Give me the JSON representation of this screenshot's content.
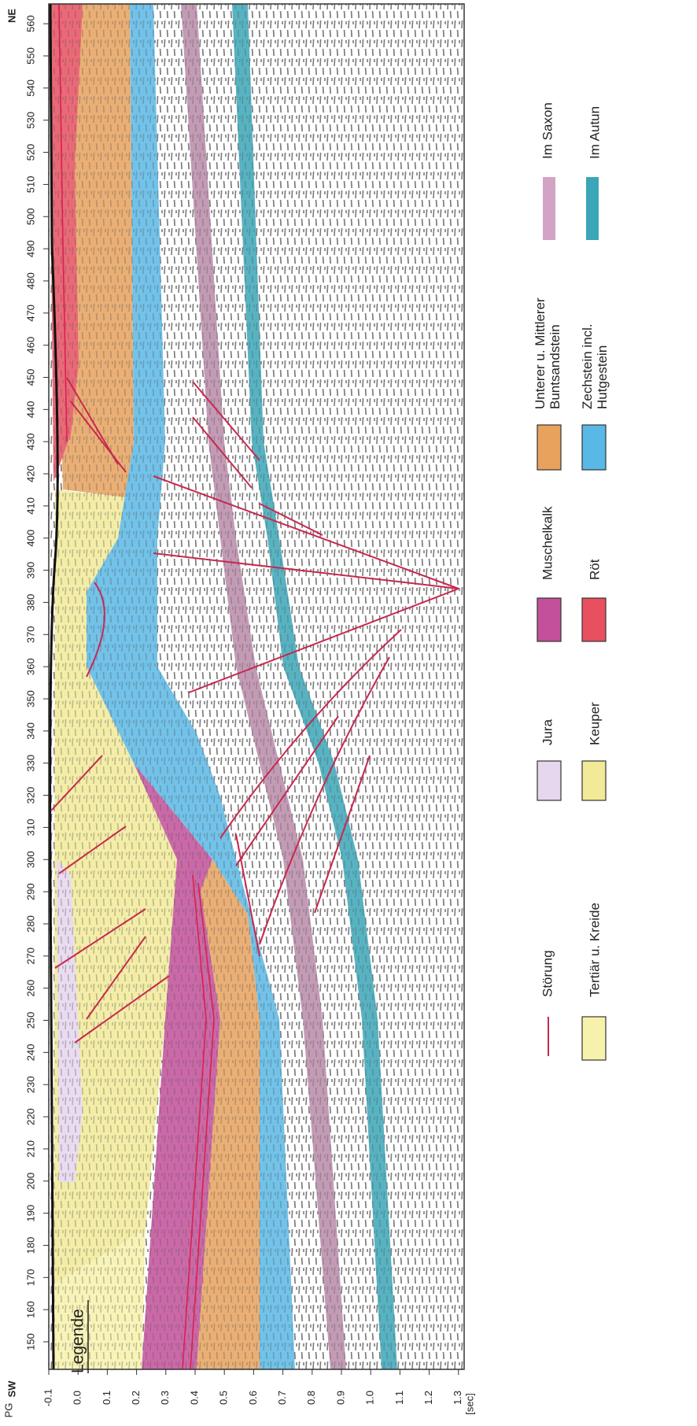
{
  "section": {
    "sw_label": "SW",
    "ne_label": "NE",
    "cdp_labels": [
      "150",
      "160",
      "170",
      "180",
      "190",
      "200",
      "210",
      "220",
      "230",
      "240",
      "250",
      "260",
      "270",
      "280",
      "290",
      "300",
      "310",
      "320",
      "330",
      "340",
      "350",
      "360",
      "370",
      "380",
      "390",
      "400",
      "410",
      "420",
      "430",
      "440",
      "450",
      "460",
      "470",
      "480",
      "490",
      "500",
      "510",
      "520",
      "530",
      "540",
      "550",
      "560"
    ],
    "time_axis_label": "PG",
    "time_labels": [
      "-0.1",
      "0.0",
      "0.1",
      "0.2",
      "0.3",
      "0.4",
      "0.5",
      "0.6",
      "0.7",
      "0.8",
      "0.9",
      "1.0",
      "1.1",
      "1.2",
      "1.3"
    ],
    "time_unit": "[sec]"
  },
  "legend": {
    "title": "Legende",
    "items": [
      {
        "lines": [
          "Störung"
        ]
      },
      {
        "lines": [
          "Tertiär u. Kreide"
        ]
      },
      {
        "lines": [
          "Jura"
        ]
      },
      {
        "lines": [
          "Keuper"
        ]
      },
      {
        "lines": [
          "Muschelkalk"
        ]
      },
      {
        "lines": [
          "Röt"
        ]
      },
      {
        "lines": [
          "Unterer u. Mittlerer",
          "Buntsandstein"
        ]
      },
      {
        "lines": [
          "Zechstein incl.",
          "Hutgestein"
        ]
      },
      {
        "lines": [
          "Im Saxon"
        ]
      },
      {
        "lines": [
          "Im Autun"
        ]
      }
    ]
  }
}
